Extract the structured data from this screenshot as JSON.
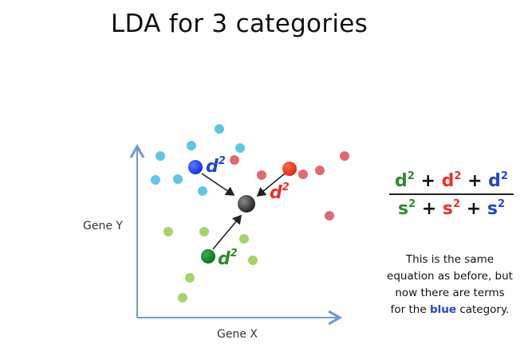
{
  "slide_title": "LDA for 3 categories",
  "axes": {
    "x_label": "Gene X",
    "y_label": "Gene Y"
  },
  "d_label": "d",
  "exponent": "2",
  "formula": {
    "numerator_base": "d",
    "denominator_base": "s",
    "exponent": "2",
    "operator": "+",
    "term_colors": [
      "#2e8b2e",
      "#e8322a",
      "#2346c8"
    ]
  },
  "caption": {
    "line1": "This is the same",
    "line2": "equation as before, but",
    "line3": "now there are terms",
    "line4_before": "for the",
    "line4_highlight": "blue",
    "line4_after": "category.",
    "highlight_color": "#2346c8"
  },
  "colors": {
    "axis": "#6f9bd0",
    "cyan_points": "#5ec6e6",
    "pink_points": "#e06a70",
    "lightgreen_points": "#a6d46a",
    "blue_center": "#1e3cf0",
    "red_center": "#f03a1e",
    "green_center": "#1a8a2a",
    "overall_center": "#3a3a3a",
    "d_blue": "#2346c8",
    "d_red": "#e8322a",
    "d_green": "#2e8b2e"
  }
}
